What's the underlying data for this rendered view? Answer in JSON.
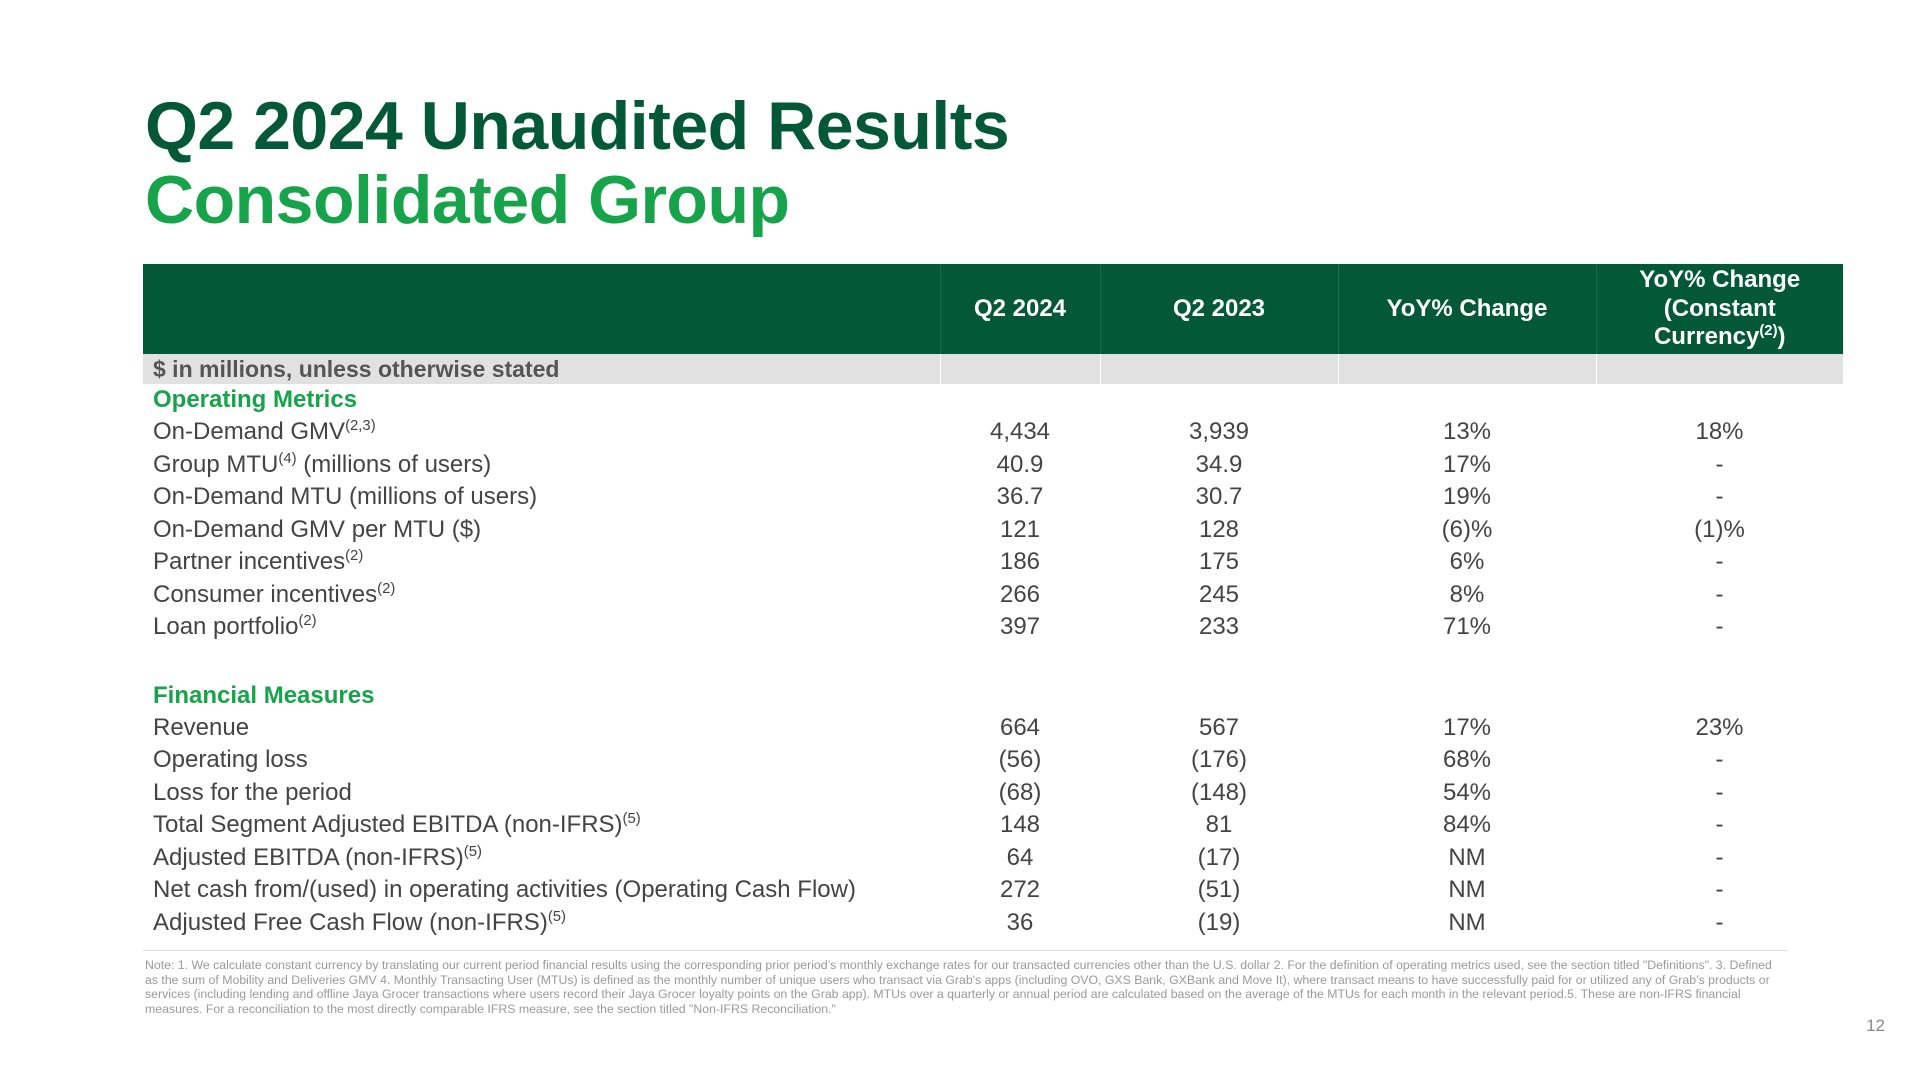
{
  "title_line1": "Q2 2024 Unaudited Results",
  "title_line2": "Consolidated Group",
  "table": {
    "headers": {
      "q2_2024": "Q2 2024",
      "q2_2023": "Q2 2023",
      "yoy": "YoY% Change",
      "yoy_cc_line1": "YoY% Change",
      "yoy_cc_line2": "(Constant",
      "yoy_cc_line3": "Currency",
      "yoy_cc_sup": "(2)",
      "yoy_cc_close": ")"
    },
    "units_label": "$ in millions, unless otherwise stated",
    "sections": [
      {
        "title": "Operating Metrics",
        "rows": [
          {
            "label": "On-Demand GMV",
            "sup": "(2,3)",
            "suffix": "",
            "q2_2024": "4,434",
            "q2_2023": "3,939",
            "yoy": "13%",
            "yoy_cc": "18%"
          },
          {
            "label": "Group MTU",
            "sup": "(4)",
            "suffix": " (millions of users)",
            "q2_2024": "40.9",
            "q2_2023": "34.9",
            "yoy": "17%",
            "yoy_cc": "-"
          },
          {
            "label": "On-Demand MTU (millions of users)",
            "sup": "",
            "suffix": "",
            "q2_2024": "36.7",
            "q2_2023": "30.7",
            "yoy": "19%",
            "yoy_cc": "-"
          },
          {
            "label": "On-Demand GMV per MTU ($)",
            "sup": "",
            "suffix": "",
            "q2_2024": "121",
            "q2_2023": "128",
            "yoy": "(6)%",
            "yoy_cc": "(1)%"
          },
          {
            "label": "Partner incentives",
            "sup": "(2)",
            "suffix": "",
            "q2_2024": "186",
            "q2_2023": "175",
            "yoy": "6%",
            "yoy_cc": "-"
          },
          {
            "label": "Consumer incentives",
            "sup": "(2)",
            "suffix": "",
            "q2_2024": "266",
            "q2_2023": "245",
            "yoy": "8%",
            "yoy_cc": "-"
          },
          {
            "label": "Loan portfolio",
            "sup": "(2)",
            "suffix": "",
            "q2_2024": "397",
            "q2_2023": "233",
            "yoy": "71%",
            "yoy_cc": "-"
          }
        ]
      },
      {
        "title": "Financial Measures",
        "rows": [
          {
            "label": "Revenue",
            "sup": "",
            "suffix": "",
            "q2_2024": "664",
            "q2_2023": "567",
            "yoy": "17%",
            "yoy_cc": "23%"
          },
          {
            "label": "Operating loss",
            "sup": "",
            "suffix": "",
            "q2_2024": "(56)",
            "q2_2023": "(176)",
            "yoy": "68%",
            "yoy_cc": "-"
          },
          {
            "label": "Loss for the period",
            "sup": "",
            "suffix": "",
            "q2_2024": "(68)",
            "q2_2023": "(148)",
            "yoy": "54%",
            "yoy_cc": "-"
          },
          {
            "label": "Total Segment Adjusted EBITDA (non-IFRS)",
            "sup": "(5)",
            "suffix": "",
            "q2_2024": "148",
            "q2_2023": "81",
            "yoy": "84%",
            "yoy_cc": "-"
          },
          {
            "label": "Adjusted EBITDA (non-IFRS)",
            "sup": "(5)",
            "suffix": "",
            "q2_2024": "64",
            "q2_2023": "(17)",
            "yoy": "NM",
            "yoy_cc": "-"
          },
          {
            "label": "Net cash from/(used) in operating activities (Operating Cash Flow)",
            "sup": "",
            "suffix": "",
            "q2_2024": "272",
            "q2_2023": "(51)",
            "yoy": "NM",
            "yoy_cc": "-"
          },
          {
            "label": "Adjusted Free Cash Flow (non-IFRS)",
            "sup": "(5)",
            "suffix": "",
            "q2_2024": "36",
            "q2_2023": "(19)",
            "yoy": "NM",
            "yoy_cc": "-"
          }
        ]
      }
    ]
  },
  "note": "Note: 1. We calculate constant currency by translating our current period financial results using the corresponding prior period’s monthly exchange rates for our transacted currencies other than the U.S. dollar 2. For the definition of operating metrics used, see the section titled \"Definitions\". 3. Defined as the sum of Mobility and Deliveries GMV 4. Monthly Transacting User (MTUs) is defined as the monthly number of unique users who transact via Grab's apps (including OVO, GXS Bank, GXBank and Move It), where transact means to have successfully paid for or utilized any of Grab’s products or services (including lending and offline Jaya Grocer transactions where users record their Jaya Grocer loyalty points on the Grab app). MTUs over a quarterly or annual period are calculated based on the average of the MTUs for each month in the relevant period.5. These are non-IFRS financial measures. For a reconciliation to the most directly comparable IFRS measure, see the section titled \"Non-IFRS Reconciliation.\"",
  "page_number": "12",
  "colors": {
    "dark_green": "#035837",
    "bright_green": "#16a34a",
    "units_bg": "#e1e1e1"
  }
}
